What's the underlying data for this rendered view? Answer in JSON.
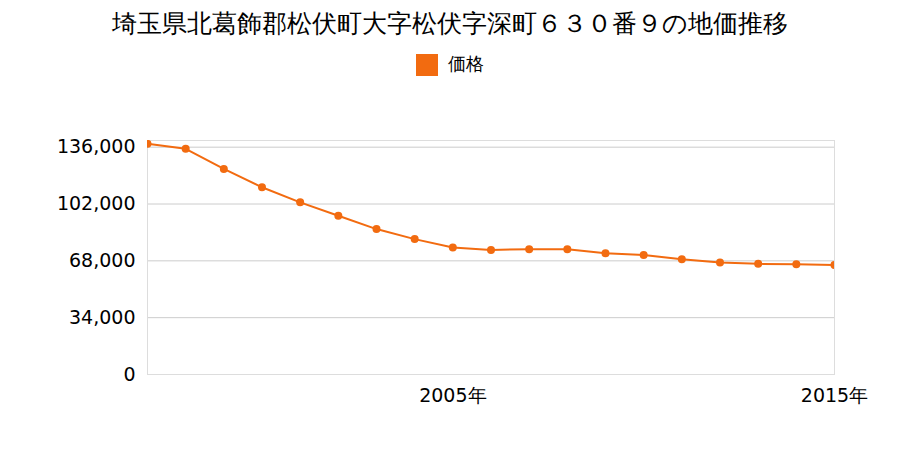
{
  "chart_data": {
    "type": "line",
    "title": "埼玉県北葛飾郡松伏町大字松伏字深町６３０番９の地価推移",
    "x": [
      1997,
      1998,
      1999,
      2000,
      2001,
      2002,
      2003,
      2004,
      2005,
      2006,
      2007,
      2008,
      2009,
      2010,
      2011,
      2012,
      2013,
      2014,
      2015
    ],
    "series": [
      {
        "name": "価格",
        "color": "#f26b10",
        "marker": "circle",
        "values": [
          138000,
          135000,
          123000,
          112000,
          103000,
          95000,
          87000,
          81000,
          76000,
          74500,
          75000,
          75000,
          72500,
          71500,
          69000,
          67000,
          66200,
          66000,
          65500
        ]
      }
    ],
    "xlim": [
      1997,
      2015
    ],
    "xticks": [
      {
        "value": 2005,
        "label": "2005年"
      },
      {
        "value": 2015,
        "label": "2015年"
      }
    ],
    "ylim": [
      0,
      140000
    ],
    "yticks": [
      0,
      {
        "value": 34000,
        "label": "34,000"
      },
      {
        "value": 68000,
        "label": "68,000"
      },
      {
        "value": 102000,
        "label": "102,000"
      },
      {
        "value": 136000,
        "label": "136,000"
      }
    ],
    "grid": true,
    "legend": "top"
  }
}
